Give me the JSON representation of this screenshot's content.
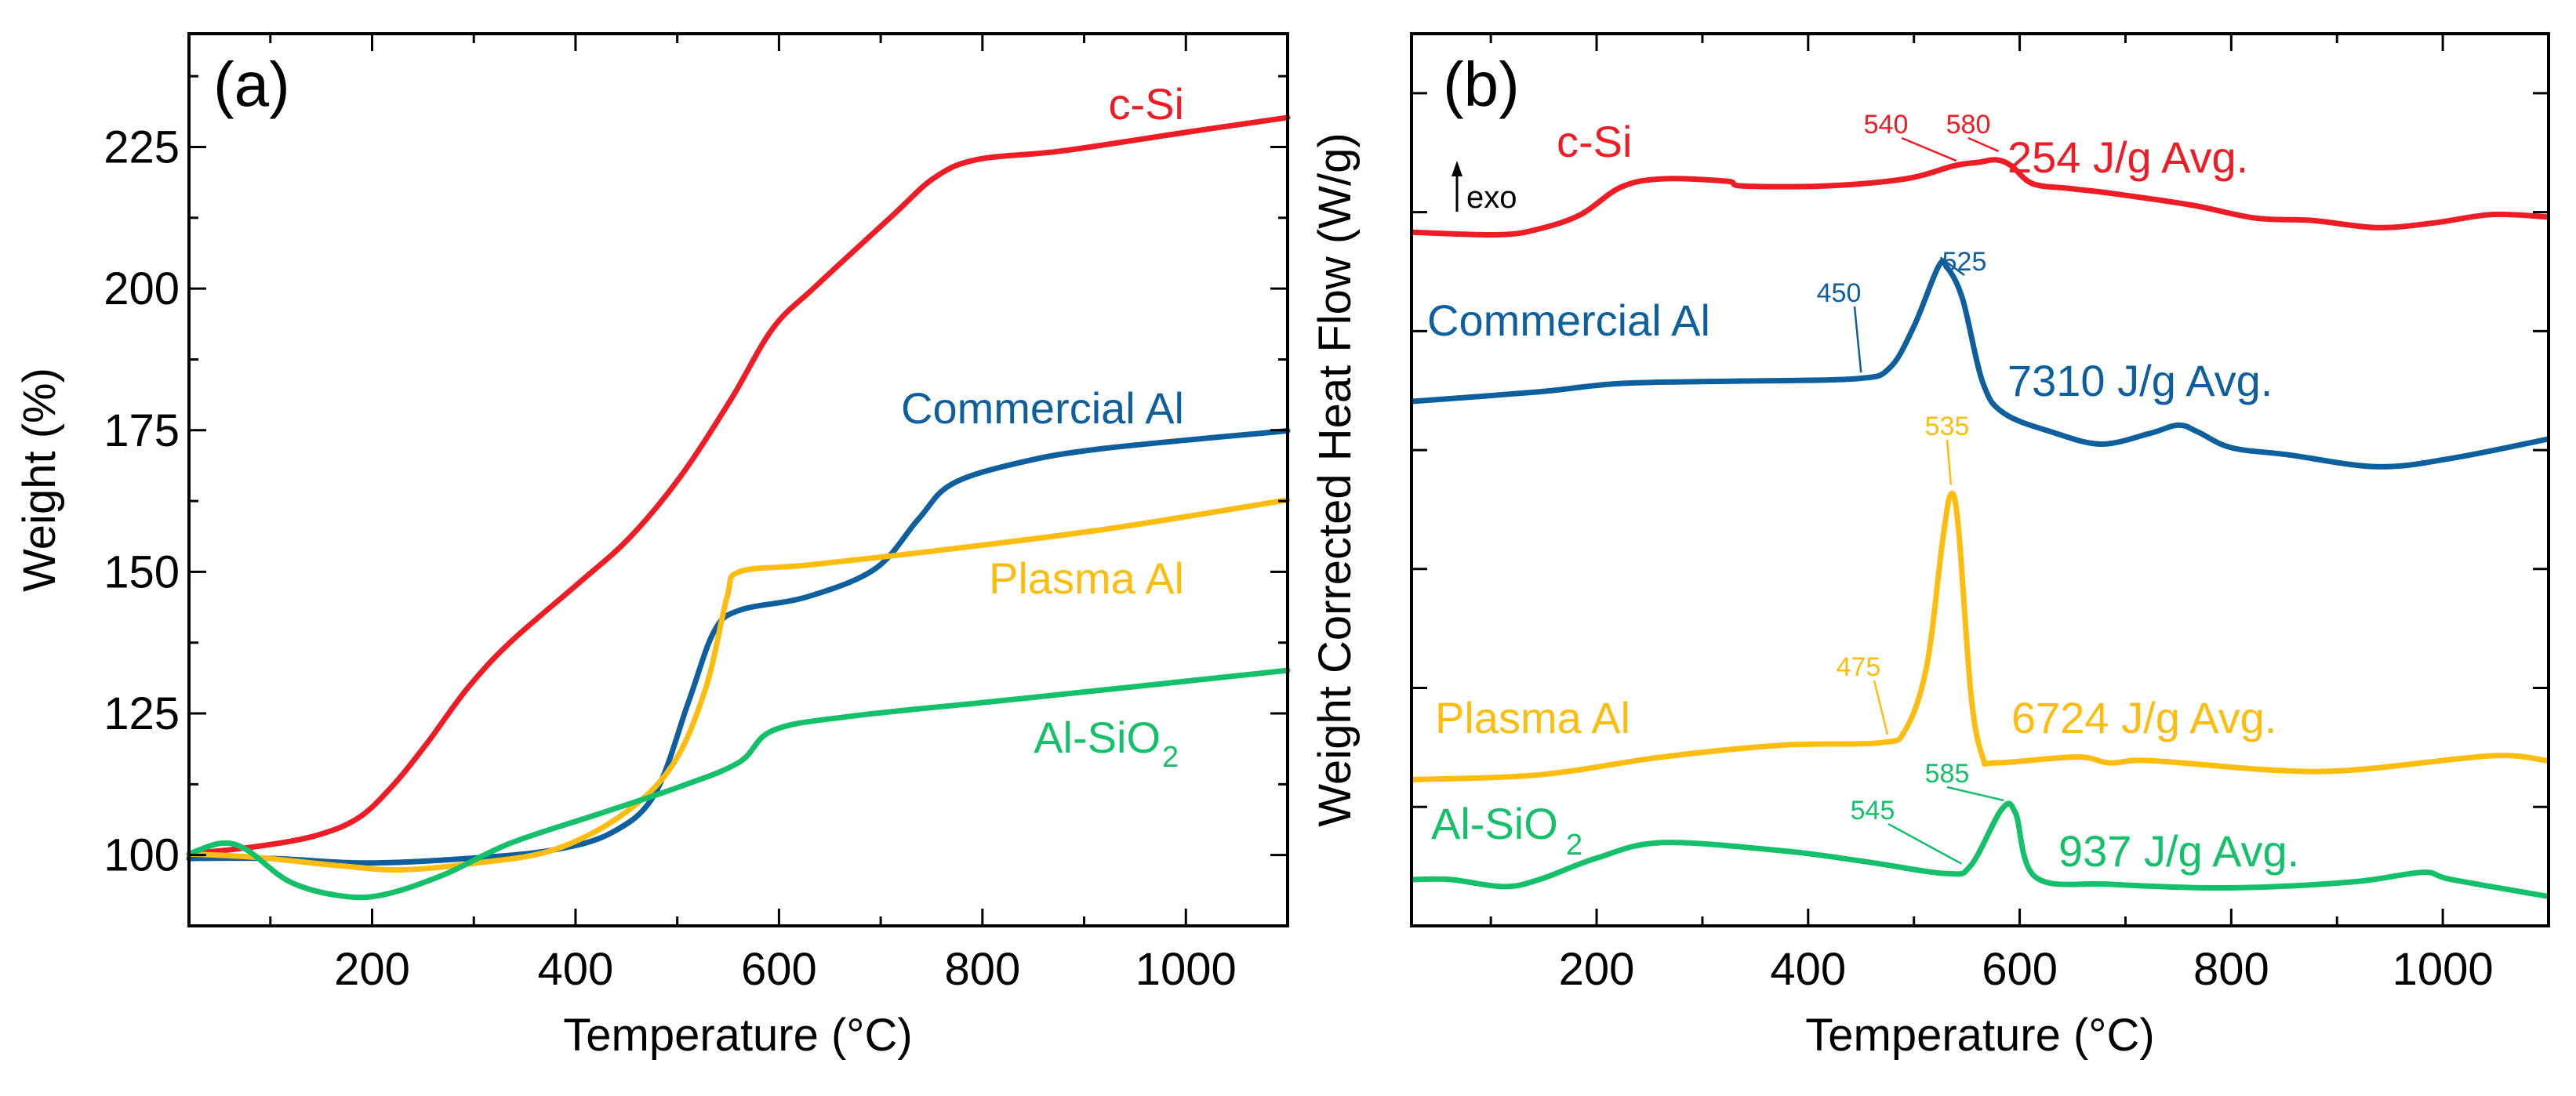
{
  "chart_data": [
    {
      "type": "line",
      "panel_label": "(a)",
      "xlabel": "Temperature (°C)",
      "ylabel": "Weight (%)",
      "xlim": [
        20,
        1100
      ],
      "ylim": [
        87.5,
        245
      ],
      "xticks": [
        200,
        400,
        600,
        800,
        1000
      ],
      "yticks": [
        100,
        125,
        150,
        175,
        200,
        225
      ],
      "grid": false,
      "series": [
        {
          "name": "c-Si",
          "color": "#ee1c25",
          "x": [
            20,
            86,
            144,
            186,
            219,
            253,
            294,
            336,
            403,
            453,
            503,
            553,
            594,
            636,
            711,
            753,
            795,
            878,
            1004,
            1100
          ],
          "y": [
            100.2,
            101.5,
            103.4,
            106.5,
            112,
            119.5,
            129.5,
            137.6,
            148,
            156,
            166.8,
            180.5,
            193,
            200.4,
            212.8,
            219.6,
            222.8,
            224.3,
            227.7,
            230.2
          ]
        },
        {
          "name": "Commercial Al",
          "color": "#0e5f9e",
          "x": [
            20,
            102,
            194,
            294,
            378,
            436,
            478,
            511,
            536,
            561,
            628,
            695,
            737,
            770,
            837,
            920,
            1100
          ],
          "y": [
            99.4,
            99.4,
            98.6,
            99.4,
            100.9,
            104,
            110.8,
            127,
            139.4,
            143.2,
            145.6,
            150.6,
            159.3,
            165.5,
            169.3,
            171.8,
            174.9
          ]
        },
        {
          "name": "Plasma Al",
          "color": "#fdbd10",
          "x": [
            20,
            86,
            169,
            228,
            303,
            378,
            445,
            495,
            528,
            549,
            561,
            628,
            753,
            920,
            1100
          ],
          "y": [
            100.2,
            99.6,
            98.1,
            97.4,
            98.6,
            100.9,
            107,
            115.8,
            129.5,
            145.6,
            150,
            151.2,
            153.7,
            157.5,
            162.7
          ]
        },
        {
          "name": "Al-SiO2",
          "label_main": "Al-SiO",
          "label_sub": "2",
          "color": "#14c06a",
          "x": [
            20,
            52,
            77,
            119,
            169,
            211,
            270,
            336,
            420,
            503,
            561,
            594,
            670,
            837,
            1100
          ],
          "y": [
            100.2,
            102.1,
            100.9,
            95.3,
            92.8,
            93,
            96.5,
            102.1,
            107.1,
            112.1,
            116.4,
            122,
            124.5,
            127.6,
            132.6
          ]
        }
      ]
    },
    {
      "type": "line",
      "panel_label": "(b)",
      "exo_label": "exo",
      "xlabel": "Temperature (°C)",
      "ylabel": "Weight Corrected Heat Flow (W/g)",
      "xlim": [
        25,
        1100
      ],
      "ylim": [
        0,
        7.5
      ],
      "xticks": [
        200,
        400,
        600,
        800,
        1000
      ],
      "yticks_unlabeled": [
        1,
        2,
        3,
        4,
        5,
        6,
        7
      ],
      "grid": false,
      "series": [
        {
          "name": "c-Si",
          "color": "#ee1c25",
          "enthalpy": "254 J/g Avg.",
          "annotations": [
            {
              "text": "540",
              "x": 540
            },
            {
              "text": "580",
              "x": 580
            }
          ],
          "x": [
            27,
            108,
            146,
            185,
            223,
            262,
            323,
            338,
            415,
            492,
            538,
            562,
            578,
            592,
            612,
            646,
            685,
            762,
            823,
            877,
            938,
            992,
            1046,
            1098
          ],
          "y": [
            5.83,
            5.81,
            5.86,
            5.98,
            6.21,
            6.28,
            6.26,
            6.22,
            6.22,
            6.28,
            6.39,
            6.42,
            6.44,
            6.39,
            6.24,
            6.2,
            6.16,
            6.06,
            5.95,
            5.93,
            5.87,
            5.91,
            5.98,
            5.96
          ]
        },
        {
          "name": "Commercial Al",
          "color": "#0e5f9e",
          "enthalpy": "7310 J/g Avg.",
          "annotations": [
            {
              "text": "450",
              "x": 450
            },
            {
              "text": "525",
              "x": 525
            }
          ],
          "x": [
            27,
            146,
            223,
            338,
            446,
            477,
            500,
            523,
            531,
            546,
            565,
            585,
            631,
            677,
            723,
            750,
            769,
            800,
            854,
            938,
            1008,
            1098
          ],
          "y": [
            4.41,
            4.49,
            4.56,
            4.58,
            4.6,
            4.69,
            5.04,
            5.54,
            5.54,
            5.27,
            4.57,
            4.31,
            4.15,
            4.05,
            4.14,
            4.21,
            4.15,
            4.02,
            3.96,
            3.86,
            3.93,
            4.09
          ]
        },
        {
          "name": "Plasma Al",
          "color": "#fdbd10",
          "enthalpy": "6724 J/g Avg.",
          "annotations": [
            {
              "text": "475",
              "x": 475
            },
            {
              "text": "535",
              "x": 535
            }
          ],
          "x": [
            27,
            146,
            262,
            377,
            469,
            492,
            512,
            527,
            535,
            542,
            554,
            565,
            577,
            654,
            685,
            723,
            838,
            915,
            1046,
            1098
          ],
          "y": [
            1.23,
            1.27,
            1.42,
            1.52,
            1.54,
            1.65,
            2.18,
            3.23,
            3.63,
            3.35,
            1.94,
            1.42,
            1.37,
            1.42,
            1.37,
            1.39,
            1.31,
            1.31,
            1.43,
            1.39
          ]
        },
        {
          "name": "Al-SiO2",
          "label_main": "Al-SiO",
          "label_sub": "2",
          "color": "#14c06a",
          "enthalpy": "937 J/g Avg.",
          "annotations": [
            {
              "text": "545",
              "x": 545
            },
            {
              "text": "585",
              "x": 585
            }
          ],
          "x": [
            27,
            62,
            112,
            146,
            200,
            262,
            377,
            454,
            531,
            554,
            583,
            596,
            615,
            685,
            800,
            915,
            981,
            1008,
            1098
          ],
          "y": [
            0.39,
            0.39,
            0.33,
            0.39,
            0.57,
            0.7,
            0.63,
            0.54,
            0.44,
            0.51,
            0.98,
            0.95,
            0.41,
            0.35,
            0.32,
            0.37,
            0.45,
            0.39,
            0.25
          ]
        }
      ]
    }
  ]
}
